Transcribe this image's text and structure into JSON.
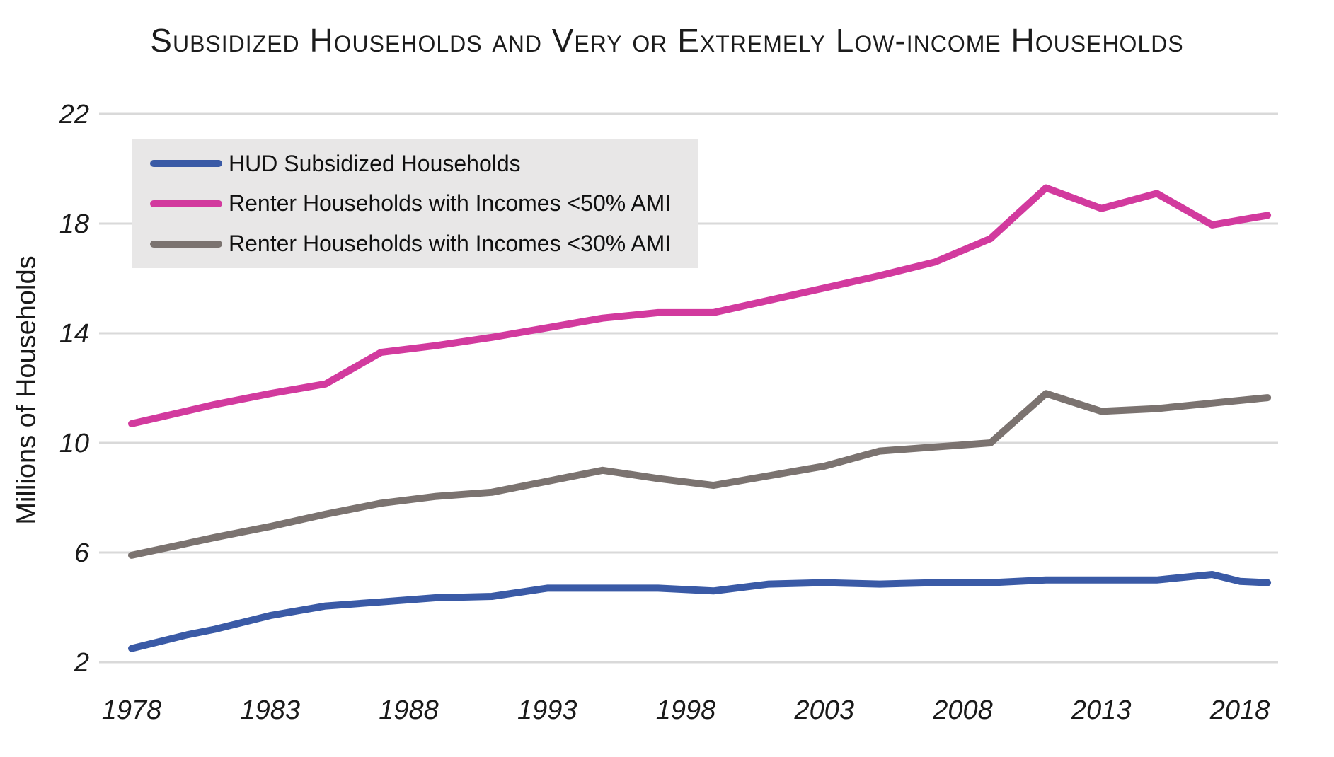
{
  "title": "Subsidized Households and Very or Extremely Low-income Households",
  "y_axis": {
    "label": "Millions of Households",
    "ticks": [
      22,
      18,
      14,
      10,
      6,
      2
    ]
  },
  "x_axis": {
    "ticks": [
      1978,
      1983,
      1988,
      1993,
      1998,
      2003,
      2008,
      2013,
      2018
    ]
  },
  "legend": {
    "items": [
      {
        "label": "HUD Subsidized Households",
        "color": "#3a5aa6"
      },
      {
        "label": "Renter Households with Incomes <50% AMI",
        "color": "#d23a9e"
      },
      {
        "label": "Renter Households with Incomes <30% AMI",
        "color": "#7b7370"
      }
    ]
  },
  "colors": {
    "blue": "#3a5aa6",
    "pink": "#d23a9e",
    "gray": "#7b7370",
    "gridline": "#d9d9d9",
    "legend_background": "#e8e7e7",
    "text": "#1a1a1a"
  },
  "chart_data": {
    "type": "line",
    "title": "Subsidized Households and Very or Extremely Low-income Households",
    "xlabel": "",
    "ylabel": "Millions of Households",
    "xlim": [
      1976.8,
      2020.5
    ],
    "ylim": [
      2,
      22
    ],
    "grid": true,
    "legend_position": "upper-left",
    "x_ticks": [
      1978,
      1983,
      1988,
      1993,
      1998,
      2003,
      2008,
      2013,
      2018
    ],
    "y_ticks": [
      2,
      6,
      10,
      14,
      18,
      22
    ],
    "series": [
      {
        "name": "HUD Subsidized Households",
        "color": "#3a5aa6",
        "x": [
          1978,
          1980,
          1981,
          1983,
          1985,
          1987,
          1989,
          1991,
          1993,
          1995,
          1997,
          1999,
          2001,
          2003,
          2005,
          2007,
          2009,
          2011,
          2013,
          2015,
          2017,
          2018,
          2019
        ],
        "y": [
          2.5,
          3.0,
          3.2,
          3.7,
          4.05,
          4.2,
          4.35,
          4.4,
          4.7,
          4.7,
          4.7,
          4.6,
          4.85,
          4.9,
          4.85,
          4.9,
          4.9,
          5.0,
          5.0,
          5.0,
          5.2,
          4.95,
          4.9
        ]
      },
      {
        "name": "Renter Households with Incomes <50% AMI",
        "color": "#d23a9e",
        "x": [
          1978,
          1981,
          1983,
          1985,
          1987,
          1989,
          1991,
          1993,
          1995,
          1997,
          1999,
          2001,
          2003,
          2005,
          2007,
          2009,
          2011,
          2013,
          2015,
          2017,
          2019
        ],
        "y": [
          10.7,
          11.4,
          11.8,
          12.15,
          13.3,
          13.55,
          13.85,
          14.2,
          14.55,
          14.75,
          14.75,
          15.2,
          15.65,
          16.1,
          16.6,
          17.45,
          19.3,
          18.55,
          19.1,
          17.95,
          18.3
        ]
      },
      {
        "name": "Renter Households with Incomes <30% AMI",
        "color": "#7b7370",
        "x": [
          1978,
          1981,
          1983,
          1985,
          1987,
          1989,
          1991,
          1993,
          1995,
          1997,
          1999,
          2001,
          2003,
          2005,
          2007,
          2009,
          2011,
          2013,
          2015,
          2017,
          2019
        ],
        "y": [
          5.9,
          6.55,
          6.95,
          7.4,
          7.8,
          8.05,
          8.2,
          8.6,
          9.0,
          8.7,
          8.45,
          8.8,
          9.15,
          9.7,
          9.85,
          10.0,
          11.8,
          11.15,
          11.25,
          11.45,
          11.65
        ]
      }
    ]
  }
}
